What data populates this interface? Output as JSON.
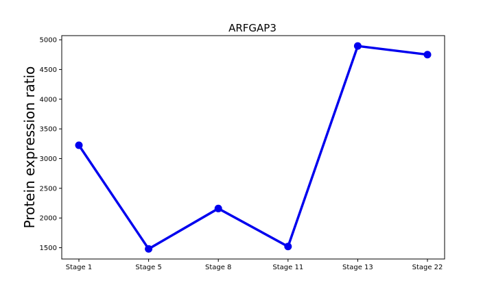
{
  "chart_data": {
    "type": "line",
    "title": "ARFGAP3",
    "xlabel": "",
    "ylabel": "Protein expression ratio",
    "categories": [
      "Stage 1",
      "Stage 5",
      "Stage 8",
      "Stage 11",
      "Stage 13",
      "Stage 22"
    ],
    "series": [
      {
        "values": [
          3225,
          1480,
          2160,
          1520,
          4895,
          4750
        ],
        "color": "#0000ee"
      }
    ],
    "ylim": [
      1310,
      5070
    ],
    "yticks": [
      1500,
      2000,
      2500,
      3000,
      3500,
      4000,
      4500,
      5000
    ],
    "grid": false,
    "legend": "none"
  }
}
